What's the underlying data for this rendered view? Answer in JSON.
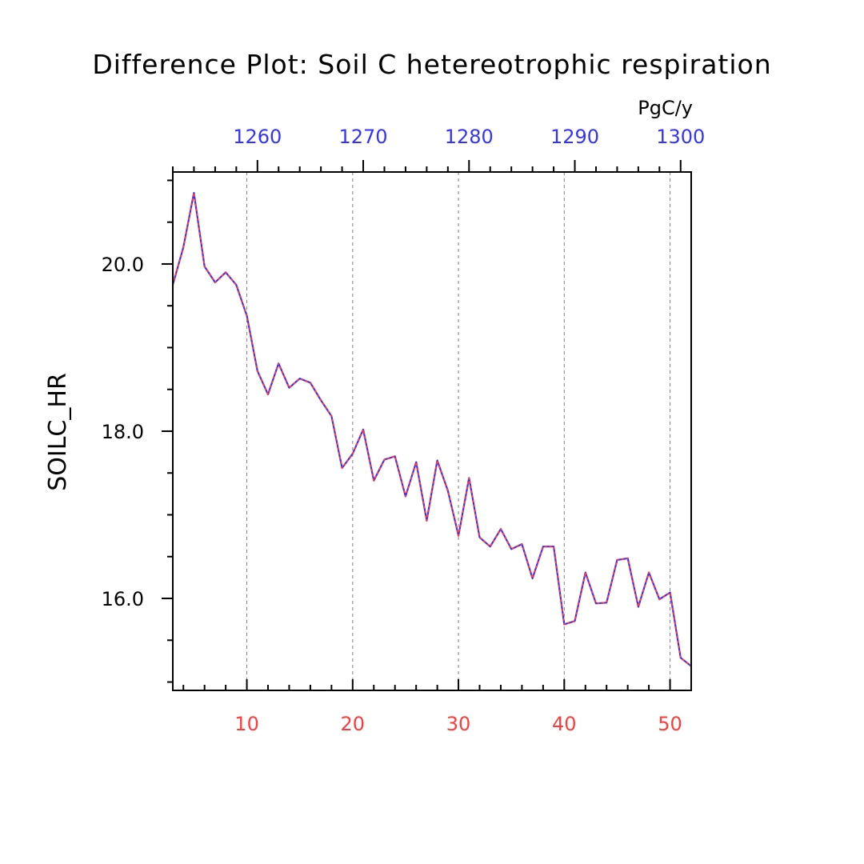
{
  "chart_data": {
    "type": "line",
    "title": "Difference Plot: Soil C hetereotrophic respiration",
    "units": "PgC/y",
    "ylabel": "SOILC_HR",
    "xlim": [
      3,
      52
    ],
    "ylim": [
      14.9,
      21.1
    ],
    "x2lim": [
      1252,
      1301
    ],
    "yticks": [
      16.0,
      18.0,
      20.0
    ],
    "ytick_labels": [
      "16.0",
      "18.0",
      "20.0"
    ],
    "yminor_step": 0.5,
    "xticks": [
      10,
      20,
      30,
      40,
      50
    ],
    "xtick_labels": [
      "10",
      "20",
      "30",
      "40",
      "50"
    ],
    "x2ticks": [
      1260,
      1270,
      1280,
      1290,
      1300
    ],
    "x2tick_labels": [
      "1260",
      "1270",
      "1280",
      "1290",
      "1300"
    ],
    "grid_x": true,
    "colors": {
      "bottom_axis": "#ff3b3b",
      "top_axis": "#3333ff",
      "series_solid": "#3333ff",
      "series_dashed": "#ff3b3b",
      "grid": "#808080"
    },
    "series": [
      {
        "x": [
          3,
          4,
          5,
          6,
          7,
          8,
          9,
          10,
          11,
          12,
          13,
          14,
          15,
          16,
          17,
          18,
          19,
          20,
          21,
          22,
          23,
          24,
          25,
          26,
          27,
          28,
          29,
          30,
          31,
          32,
          33,
          34,
          35,
          36,
          37,
          38,
          39,
          40,
          41,
          42,
          43,
          44,
          45,
          46,
          47,
          48,
          49,
          50,
          51,
          52
        ],
        "values": [
          19.75,
          20.2,
          20.85,
          19.97,
          19.78,
          19.9,
          19.75,
          19.38,
          18.72,
          18.44,
          18.81,
          18.52,
          18.63,
          18.58,
          18.37,
          18.18,
          17.56,
          17.73,
          18.02,
          17.41,
          17.66,
          17.7,
          17.22,
          17.63,
          16.93,
          17.65,
          17.29,
          16.75,
          17.44,
          16.73,
          16.62,
          16.83,
          16.59,
          16.65,
          16.24,
          16.62,
          16.62,
          15.69,
          15.73,
          16.31,
          15.94,
          15.95,
          16.46,
          16.48,
          15.9,
          16.31,
          15.99,
          16.07,
          15.29,
          15.19
        ]
      }
    ]
  }
}
